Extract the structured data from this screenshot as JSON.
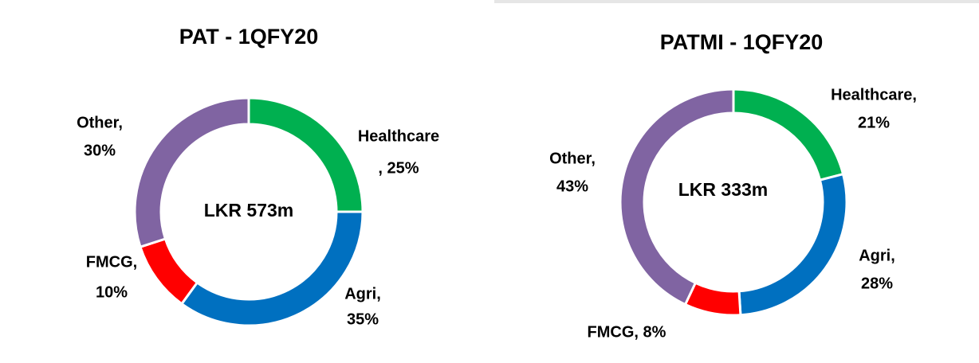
{
  "chart_data": [
    {
      "type": "pie",
      "title": "PAT - 1QFY20",
      "center_label": "LKR 573m",
      "categories": [
        "Healthcare",
        "Agri",
        "FMCG",
        "Other"
      ],
      "values": [
        25,
        35,
        10,
        30
      ],
      "value_labels": [
        [
          "Healthcare",
          ", 25%"
        ],
        [
          "Agri,",
          "35%"
        ],
        [
          "FMCG,",
          "10%"
        ],
        [
          "Other,",
          "30%"
        ]
      ],
      "colors": [
        "#00b050",
        "#0070c0",
        "#ff0000",
        "#8064a2"
      ]
    },
    {
      "type": "pie",
      "title": "PATMI - 1QFY20",
      "center_label": "LKR 333m",
      "categories": [
        "Healthcare",
        "Agri",
        "FMCG",
        "Other"
      ],
      "values": [
        21,
        28,
        8,
        43
      ],
      "value_labels": [
        [
          "Healthcare,",
          "21%"
        ],
        [
          "Agri,",
          "28%"
        ],
        [
          "FMCG, 8%"
        ],
        [
          "Other,",
          "43%"
        ]
      ],
      "colors": [
        "#00b050",
        "#0070c0",
        "#ff0000",
        "#8064a2"
      ]
    }
  ]
}
